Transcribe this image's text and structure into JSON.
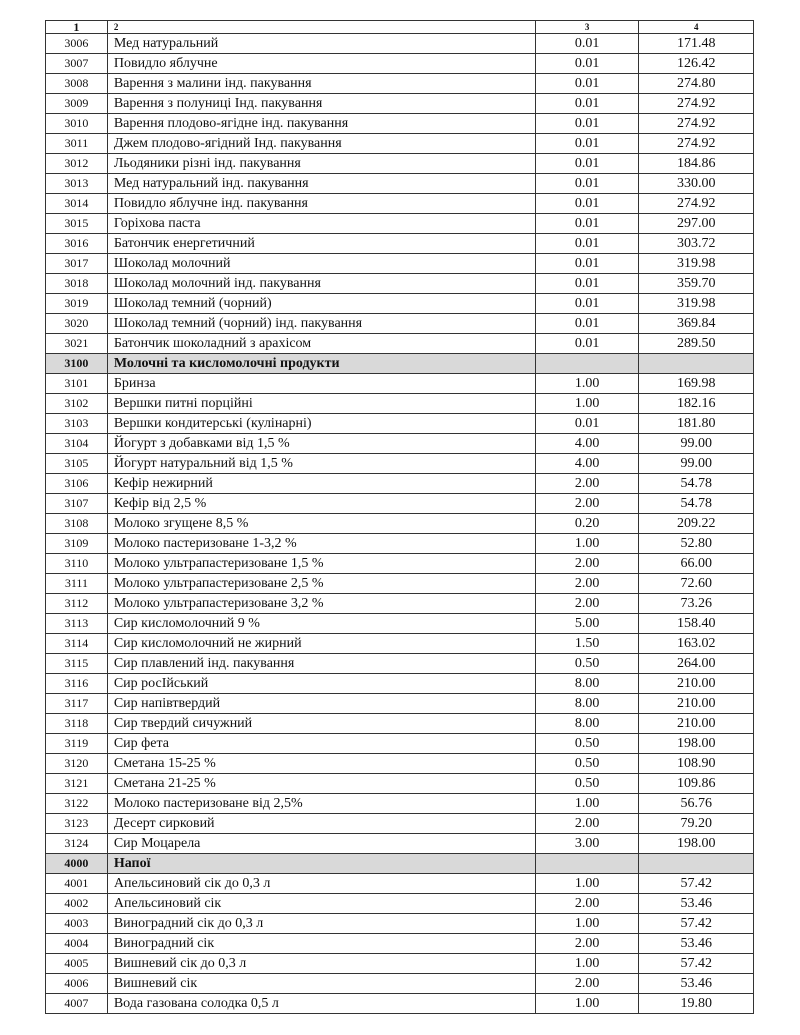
{
  "header": [
    "1",
    "2",
    "3",
    "4"
  ],
  "section_color": "#d9d9d9",
  "rows": [
    {
      "code": "3006",
      "name": "Мед натуральний",
      "qty": "0.01",
      "price": "171.48"
    },
    {
      "code": "3007",
      "name": "Повидло яблучне",
      "qty": "0.01",
      "price": "126.42"
    },
    {
      "code": "3008",
      "name": "Варення з малини інд. пакування",
      "qty": "0.01",
      "price": "274.80"
    },
    {
      "code": "3009",
      "name": "Варення з полуниці Інд. пакування",
      "qty": "0.01",
      "price": "274.92"
    },
    {
      "code": "3010",
      "name": "Варення плодово-ягідне інд. пакування",
      "qty": "0.01",
      "price": "274.92"
    },
    {
      "code": "3011",
      "name": "Джем плодово-ягідний Інд. пакування",
      "qty": "0.01",
      "price": "274.92"
    },
    {
      "code": "3012",
      "name": "Льодяники різні інд. пакування",
      "qty": "0.01",
      "price": "184.86"
    },
    {
      "code": "3013",
      "name": "Мед натуральний інд. пакування",
      "qty": "0.01",
      "price": "330.00"
    },
    {
      "code": "3014",
      "name": "Повидло яблучне інд. пакування",
      "qty": "0.01",
      "price": "274.92"
    },
    {
      "code": "3015",
      "name": "Горіхова паста",
      "qty": "0.01",
      "price": "297.00"
    },
    {
      "code": "3016",
      "name": "Батончик енергетичний",
      "qty": "0.01",
      "price": "303.72"
    },
    {
      "code": "3017",
      "name": "Шоколад молочний",
      "qty": "0.01",
      "price": "319.98"
    },
    {
      "code": "3018",
      "name": "Шоколад молочний інд. пакування",
      "qty": "0.01",
      "price": "359.70"
    },
    {
      "code": "3019",
      "name": "Шоколад темний (чорний)",
      "qty": "0.01",
      "price": "319.98"
    },
    {
      "code": "3020",
      "name": "Шоколад темний (чорний) інд. пакування",
      "qty": "0.01",
      "price": "369.84"
    },
    {
      "code": "3021",
      "name": "Батончик шоколадний з арахісом",
      "qty": "0.01",
      "price": "289.50"
    },
    {
      "code": "3100",
      "name": "Молочні та кисломолочні продукти",
      "qty": "",
      "price": "",
      "section": true
    },
    {
      "code": "3101",
      "name": "Бринза",
      "qty": "1.00",
      "price": "169.98"
    },
    {
      "code": "3102",
      "name": "Вершки питні порційні",
      "qty": "1.00",
      "price": "182.16"
    },
    {
      "code": "3103",
      "name": "Вершки кондитерські (кулінарні)",
      "qty": "0.01",
      "price": "181.80"
    },
    {
      "code": "3104",
      "name": "Йогурт з добавками від 1,5 %",
      "qty": "4.00",
      "price": "99.00"
    },
    {
      "code": "3105",
      "name": "Йогурт натуральний від 1,5 %",
      "qty": "4.00",
      "price": "99.00"
    },
    {
      "code": "3106",
      "name": "Кефір нежирний",
      "qty": "2.00",
      "price": "54.78"
    },
    {
      "code": "3107",
      "name": "Кефір від 2,5 %",
      "qty": "2.00",
      "price": "54.78"
    },
    {
      "code": "3108",
      "name": "Молоко згущене 8,5 %",
      "qty": "0.20",
      "price": "209.22"
    },
    {
      "code": "3109",
      "name": "Молоко пастеризоване 1-3,2 %",
      "qty": "1.00",
      "price": "52.80"
    },
    {
      "code": "3110",
      "name": "Молоко ультрапастеризоване 1,5 %",
      "qty": "2.00",
      "price": "66.00"
    },
    {
      "code": "3111",
      "name": "Молоко ультрапастеризоване 2,5 %",
      "qty": "2.00",
      "price": "72.60"
    },
    {
      "code": "3112",
      "name": "Молоко ультрапастеризоване 3,2 %",
      "qty": "2.00",
      "price": "73.26"
    },
    {
      "code": "3113",
      "name": "Сир кисломолочний 9 %",
      "qty": "5.00",
      "price": "158.40"
    },
    {
      "code": "3114",
      "name": "Сир кисломолочний не жирний",
      "qty": "1.50",
      "price": "163.02"
    },
    {
      "code": "3115",
      "name": "Сир плавлений інд. пакування",
      "qty": "0.50",
      "price": "264.00"
    },
    {
      "code": "3116",
      "name": "Сир росІйський",
      "qty": "8.00",
      "price": "210.00"
    },
    {
      "code": "3117",
      "name": "Сир напівтвердий",
      "qty": "8.00",
      "price": "210.00"
    },
    {
      "code": "3118",
      "name": "Сир твердий сичужний",
      "qty": "8.00",
      "price": "210.00"
    },
    {
      "code": "3119",
      "name": "Сир фета",
      "qty": "0.50",
      "price": "198.00"
    },
    {
      "code": "3120",
      "name": "Сметана 15-25 %",
      "qty": "0.50",
      "price": "108.90"
    },
    {
      "code": "3121",
      "name": "Сметана 21-25 %",
      "qty": "0.50",
      "price": "109.86"
    },
    {
      "code": "3122",
      "name": "Молоко пастеризоване від 2,5%",
      "qty": "1.00",
      "price": "56.76"
    },
    {
      "code": "3123",
      "name": "Десерт сирковий",
      "qty": "2.00",
      "price": "79.20"
    },
    {
      "code": "3124",
      "name": "Сир Моцарела",
      "qty": "3.00",
      "price": "198.00"
    },
    {
      "code": "4000",
      "name": "Напої",
      "qty": "",
      "price": "",
      "section": true
    },
    {
      "code": "4001",
      "name": "Апельсиновий сік до 0,3 л",
      "qty": "1.00",
      "price": "57.42"
    },
    {
      "code": "4002",
      "name": "Апельсиновий сік",
      "qty": "2.00",
      "price": "53.46"
    },
    {
      "code": "4003",
      "name": "Виноградний сік до 0,3 л",
      "qty": "1.00",
      "price": "57.42"
    },
    {
      "code": "4004",
      "name": "Виноградний сік",
      "qty": "2.00",
      "price": "53.46"
    },
    {
      "code": "4005",
      "name": "Вишневий сік до 0,3 л",
      "qty": "1.00",
      "price": "57.42"
    },
    {
      "code": "4006",
      "name": "Вишневий сік",
      "qty": "2.00",
      "price": "53.46"
    },
    {
      "code": "4007",
      "name": "Вода газована солодка 0,5 л",
      "qty": "1.00",
      "price": "19.80"
    }
  ]
}
